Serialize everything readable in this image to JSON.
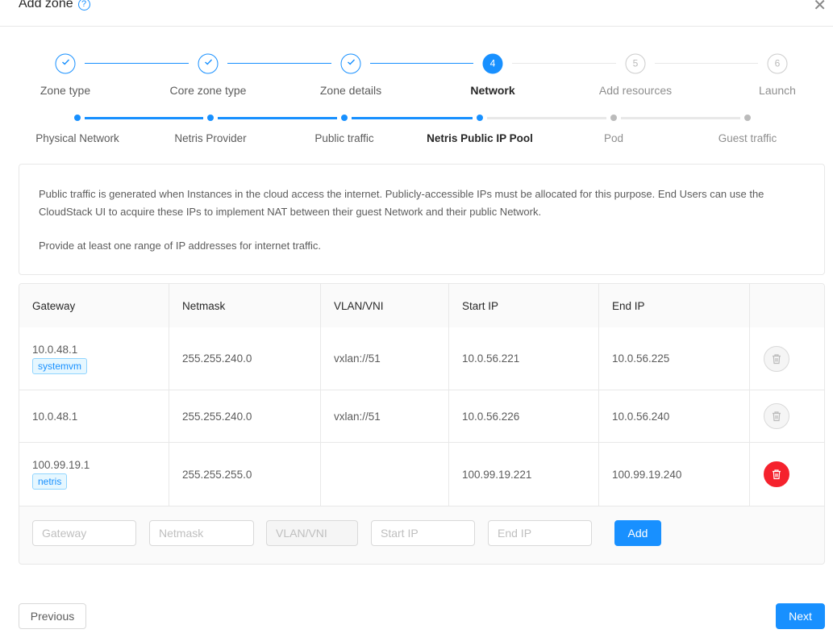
{
  "header": {
    "title": "Add zone",
    "help_icon": "question-circle-icon",
    "close_icon": "close-icon"
  },
  "steps": [
    {
      "label": "Zone type",
      "status": "done"
    },
    {
      "label": "Core zone type",
      "status": "done"
    },
    {
      "label": "Zone details",
      "status": "done"
    },
    {
      "label": "Network",
      "number": "4",
      "status": "active"
    },
    {
      "label": "Add resources",
      "number": "5",
      "status": "wait"
    },
    {
      "label": "Launch",
      "number": "6",
      "status": "wait"
    }
  ],
  "substeps": [
    {
      "label": "Physical Network",
      "status": "done"
    },
    {
      "label": "Netris Provider",
      "status": "done"
    },
    {
      "label": "Public traffic",
      "status": "done"
    },
    {
      "label": "Netris Public IP Pool",
      "status": "active"
    },
    {
      "label": "Pod",
      "status": "wait"
    },
    {
      "label": "Guest traffic",
      "status": "wait"
    }
  ],
  "description": {
    "p1": "Public traffic is generated when Instances in the cloud access the internet. Publicly-accessible IPs must be allocated for this purpose. End Users can use the CloudStack UI to acquire these IPs to implement NAT between their guest Network and their public Network.",
    "p2": "Provide at least one range of IP addresses for internet traffic."
  },
  "table": {
    "columns": [
      "Gateway",
      "Netmask",
      "VLAN/VNI",
      "Start IP",
      "End IP",
      ""
    ],
    "rows": [
      {
        "gateway": "10.0.48.1",
        "tag": "systemvm",
        "netmask": "255.255.240.0",
        "vlan": "vxlan://51",
        "start": "10.0.56.221",
        "end": "10.0.56.225",
        "delete_enabled": false
      },
      {
        "gateway": "10.0.48.1",
        "tag": "",
        "netmask": "255.255.240.0",
        "vlan": "vxlan://51",
        "start": "10.0.56.226",
        "end": "10.0.56.240",
        "delete_enabled": false
      },
      {
        "gateway": "100.99.19.1",
        "tag": "netris",
        "netmask": "255.255.255.0",
        "vlan": "",
        "start": "100.99.19.221",
        "end": "100.99.19.240",
        "delete_enabled": true
      }
    ]
  },
  "form": {
    "gateway_placeholder": "Gateway",
    "netmask_placeholder": "Netmask",
    "vlan_placeholder": "VLAN/VNI",
    "start_placeholder": "Start IP",
    "end_placeholder": "End IP",
    "add_label": "Add"
  },
  "footer": {
    "previous_label": "Previous",
    "next_label": "Next"
  },
  "colors": {
    "primary": "#1890ff",
    "danger": "#f5222d"
  }
}
